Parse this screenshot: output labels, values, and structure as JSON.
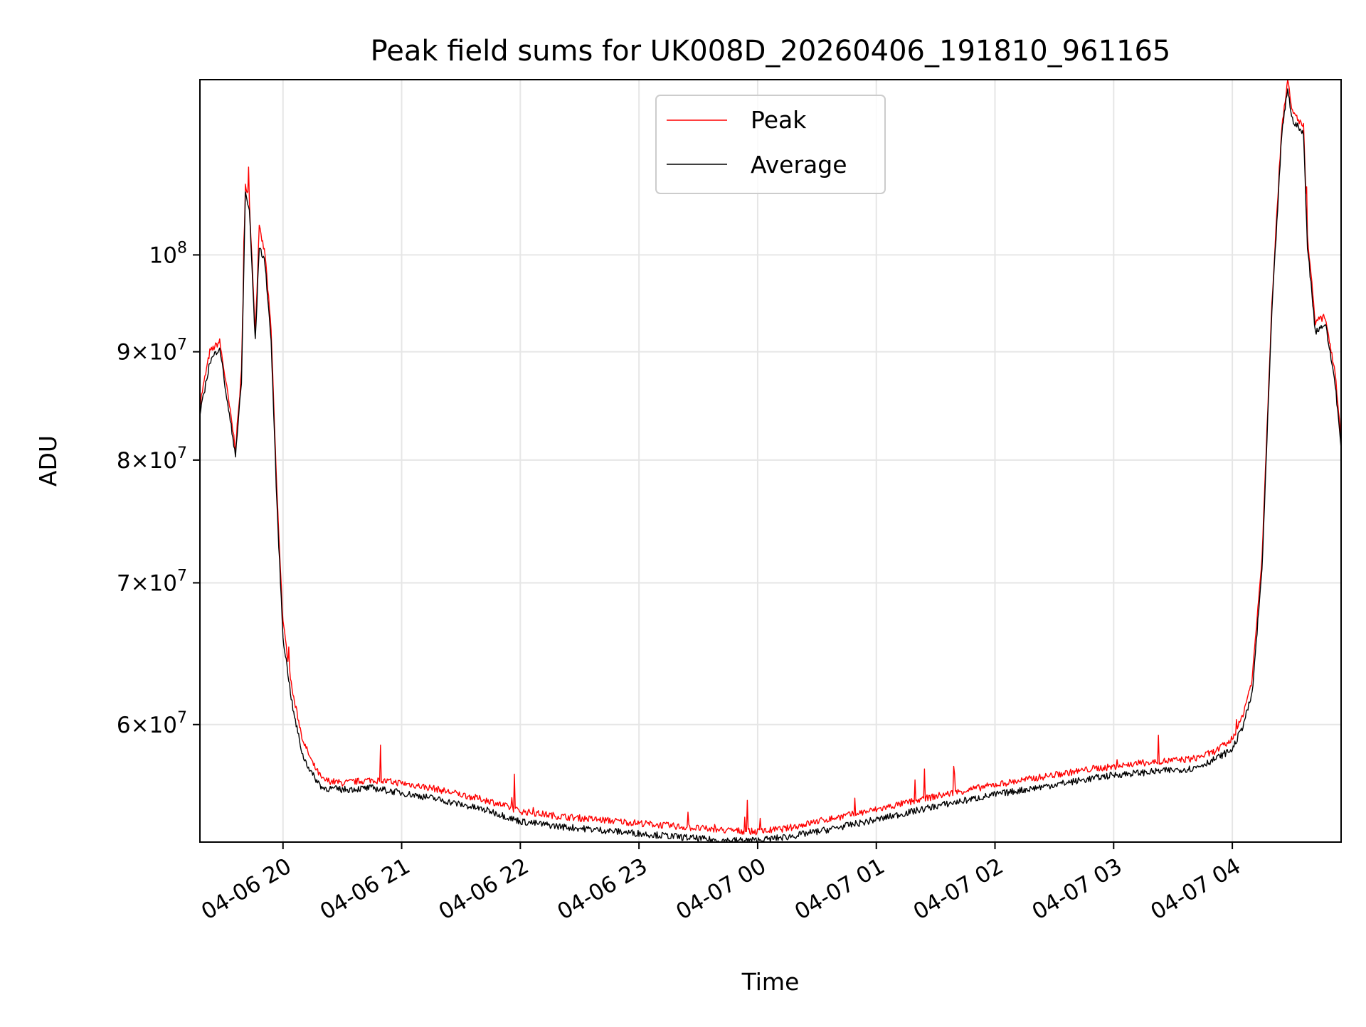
{
  "chart_data": {
    "type": "line",
    "title": "Peak field sums for UK008D_20260406_191810_961165",
    "xlabel": "Time",
    "ylabel": "ADU",
    "yscale": "log",
    "grid": true,
    "legend_position": "upper-center",
    "xlim": [
      "2026-04-06 19:18",
      "2026-04-07 04:55"
    ],
    "ylim": [
      52800000,
      121000000
    ],
    "x_ticks": [
      {
        "value": "2026-04-06 20:00",
        "label": "04-06 20"
      },
      {
        "value": "2026-04-06 21:00",
        "label": "04-06 21"
      },
      {
        "value": "2026-04-06 22:00",
        "label": "04-06 22"
      },
      {
        "value": "2026-04-06 23:00",
        "label": "04-06 23"
      },
      {
        "value": "2026-04-07 00:00",
        "label": "04-07 00"
      },
      {
        "value": "2026-04-07 01:00",
        "label": "04-07 01"
      },
      {
        "value": "2026-04-07 02:00",
        "label": "04-07 02"
      },
      {
        "value": "2026-04-07 03:00",
        "label": "04-07 03"
      },
      {
        "value": "2026-04-07 04:00",
        "label": "04-07 04"
      }
    ],
    "y_ticks": [
      {
        "value": 60000000,
        "mantissa": "6",
        "base": "10",
        "exponent": "7"
      },
      {
        "value": 70000000,
        "mantissa": "7",
        "base": "10",
        "exponent": "7"
      },
      {
        "value": 80000000,
        "mantissa": "8",
        "base": "10",
        "exponent": "7"
      },
      {
        "value": 90000000,
        "mantissa": "9",
        "base": "10",
        "exponent": "7"
      },
      {
        "value": 100000000,
        "mantissa": "",
        "base": "10",
        "exponent": "8"
      }
    ],
    "series": [
      {
        "name": "Peak",
        "color": "#ff0000",
        "x": [
          "2026-04-06 19:18",
          "2026-04-06 19:23",
          "2026-04-06 19:28",
          "2026-04-06 19:32",
          "2026-04-06 19:36",
          "2026-04-06 19:39",
          "2026-04-06 19:41",
          "2026-04-06 19:43",
          "2026-04-06 19:46",
          "2026-04-06 19:48",
          "2026-04-06 19:51",
          "2026-04-06 19:54",
          "2026-04-06 19:57",
          "2026-04-06 20:00",
          "2026-04-06 20:05",
          "2026-04-06 20:10",
          "2026-04-06 20:15",
          "2026-04-06 20:20",
          "2026-04-06 20:30",
          "2026-04-06 20:45",
          "2026-04-06 21:00",
          "2026-04-06 21:15",
          "2026-04-06 21:30",
          "2026-04-06 21:45",
          "2026-04-06 22:00",
          "2026-04-06 22:20",
          "2026-04-06 22:40",
          "2026-04-06 23:00",
          "2026-04-06 23:20",
          "2026-04-06 23:40",
          "2026-04-07 00:00",
          "2026-04-07 00:15",
          "2026-04-07 00:30",
          "2026-04-07 01:00",
          "2026-04-07 01:30",
          "2026-04-07 02:00",
          "2026-04-07 02:30",
          "2026-04-07 02:50",
          "2026-04-07 03:00",
          "2026-04-07 03:10",
          "2026-04-07 03:20",
          "2026-04-07 03:30",
          "2026-04-07 03:40",
          "2026-04-07 03:50",
          "2026-04-07 04:00",
          "2026-04-07 04:05",
          "2026-04-07 04:10",
          "2026-04-07 04:15",
          "2026-04-07 04:20",
          "2026-04-07 04:25",
          "2026-04-07 04:28",
          "2026-04-07 04:30",
          "2026-04-07 04:33",
          "2026-04-07 04:36",
          "2026-04-07 04:38",
          "2026-04-07 04:42",
          "2026-04-07 04:47",
          "2026-04-07 04:52",
          "2026-04-07 04:55"
        ],
        "y": [
          85000000,
          90000000,
          91000000,
          86000000,
          81000000,
          88000000,
          108000000,
          106000000,
          92000000,
          103000000,
          100000000,
          92000000,
          77000000,
          67000000,
          62000000,
          59000000,
          57500000,
          56500000,
          56300000,
          56500000,
          56300000,
          56000000,
          55600000,
          55200000,
          54600000,
          54300000,
          54100000,
          53900000,
          53700000,
          53500000,
          53400000,
          53600000,
          54000000,
          54700000,
          55500000,
          56200000,
          56800000,
          57200000,
          57300000,
          57500000,
          57600000,
          57700000,
          57800000,
          58200000,
          59000000,
          60500000,
          63000000,
          72000000,
          95000000,
          115000000,
          121000000,
          117000000,
          116000000,
          115000000,
          102000000,
          93000000,
          93500000,
          88000000,
          82000000
        ]
      },
      {
        "name": "Average",
        "color": "#000000",
        "x": [
          "2026-04-06 19:18",
          "2026-04-06 19:23",
          "2026-04-06 19:28",
          "2026-04-06 19:32",
          "2026-04-06 19:36",
          "2026-04-06 19:39",
          "2026-04-06 19:41",
          "2026-04-06 19:43",
          "2026-04-06 19:46",
          "2026-04-06 19:48",
          "2026-04-06 19:51",
          "2026-04-06 19:54",
          "2026-04-06 19:57",
          "2026-04-06 20:00",
          "2026-04-06 20:05",
          "2026-04-06 20:10",
          "2026-04-06 20:15",
          "2026-04-06 20:20",
          "2026-04-06 20:30",
          "2026-04-06 20:45",
          "2026-04-06 21:00",
          "2026-04-06 21:15",
          "2026-04-06 21:30",
          "2026-04-06 21:45",
          "2026-04-06 22:00",
          "2026-04-06 22:20",
          "2026-04-06 22:40",
          "2026-04-06 23:00",
          "2026-04-06 23:20",
          "2026-04-06 23:40",
          "2026-04-07 00:00",
          "2026-04-07 00:15",
          "2026-04-07 00:30",
          "2026-04-07 01:00",
          "2026-04-07 01:30",
          "2026-04-07 02:00",
          "2026-04-07 02:30",
          "2026-04-07 02:50",
          "2026-04-07 03:00",
          "2026-04-07 03:10",
          "2026-04-07 03:20",
          "2026-04-07 03:30",
          "2026-04-07 03:40",
          "2026-04-07 03:50",
          "2026-04-07 04:00",
          "2026-04-07 04:05",
          "2026-04-07 04:10",
          "2026-04-07 04:15",
          "2026-04-07 04:20",
          "2026-04-07 04:25",
          "2026-04-07 04:28",
          "2026-04-07 04:30",
          "2026-04-07 04:33",
          "2026-04-07 04:36",
          "2026-04-07 04:38",
          "2026-04-07 04:42",
          "2026-04-07 04:47",
          "2026-04-07 04:52",
          "2026-04-07 04:55"
        ],
        "y": [
          84000000,
          89000000,
          90500000,
          85000000,
          80500000,
          87000000,
          107000000,
          105000000,
          91000000,
          101000000,
          99000000,
          91000000,
          76000000,
          66000000,
          61000000,
          58000000,
          56800000,
          56000000,
          55900000,
          56000000,
          55700000,
          55400000,
          55000000,
          54600000,
          54000000,
          53700000,
          53500000,
          53300000,
          53100000,
          52900000,
          52900000,
          53100000,
          53400000,
          54100000,
          54900000,
          55600000,
          56200000,
          56600000,
          56800000,
          56900000,
          57000000,
          57100000,
          57200000,
          57700000,
          58400000,
          59800000,
          62000000,
          71000000,
          94000000,
          114000000,
          120000000,
          116000000,
          115000000,
          114000000,
          101000000,
          92000000,
          92800000,
          87000000,
          81000000
        ]
      }
    ]
  }
}
